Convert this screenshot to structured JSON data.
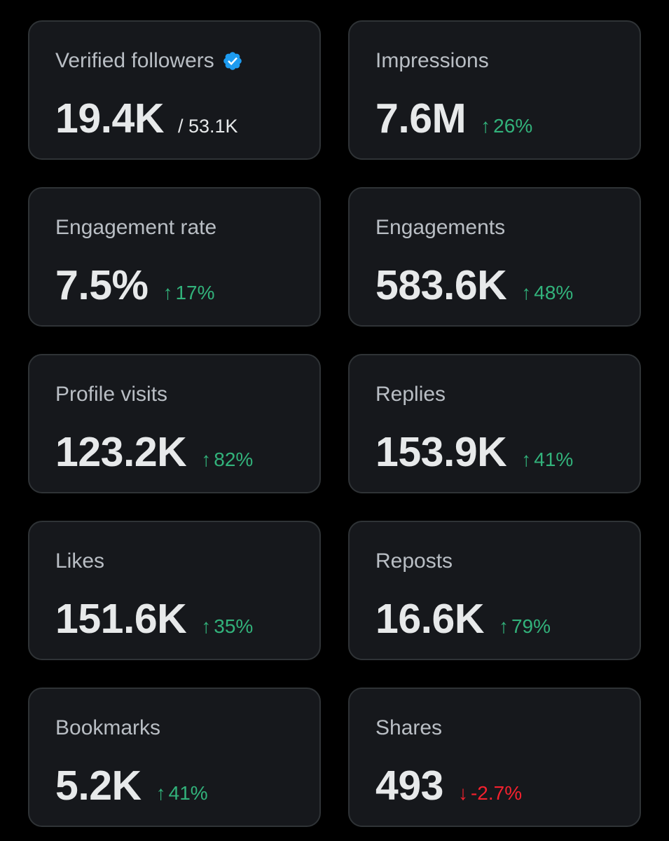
{
  "colors": {
    "background": "#000000",
    "card": "#16181c",
    "card_border": "#2f3336",
    "label": "#b9bec4",
    "value": "#e7e9ea",
    "positive": "#32b27b",
    "negative": "#f4212e",
    "verified": "#1d9bf0"
  },
  "metrics": {
    "verified_followers": {
      "label": "Verified followers",
      "value": "19.4K",
      "total": "/ 53.1K",
      "icon": "verified-badge-icon"
    },
    "impressions": {
      "label": "Impressions",
      "value": "7.6M",
      "arrow": "↑",
      "change": "26%"
    },
    "engagement_rate": {
      "label": "Engagement rate",
      "value": "7.5%",
      "arrow": "↑",
      "change": "17%"
    },
    "engagements": {
      "label": "Engagements",
      "value": "583.6K",
      "arrow": "↑",
      "change": "48%"
    },
    "profile_visits": {
      "label": "Profile visits",
      "value": "123.2K",
      "arrow": "↑",
      "change": "82%"
    },
    "replies": {
      "label": "Replies",
      "value": "153.9K",
      "arrow": "↑",
      "change": "41%"
    },
    "likes": {
      "label": "Likes",
      "value": "151.6K",
      "arrow": "↑",
      "change": "35%"
    },
    "reposts": {
      "label": "Reposts",
      "value": "16.6K",
      "arrow": "↑",
      "change": "79%"
    },
    "bookmarks": {
      "label": "Bookmarks",
      "value": "5.2K",
      "arrow": "↑",
      "change": "41%"
    },
    "shares": {
      "label": "Shares",
      "value": "493",
      "arrow": "↓",
      "change": "-2.7%"
    }
  }
}
